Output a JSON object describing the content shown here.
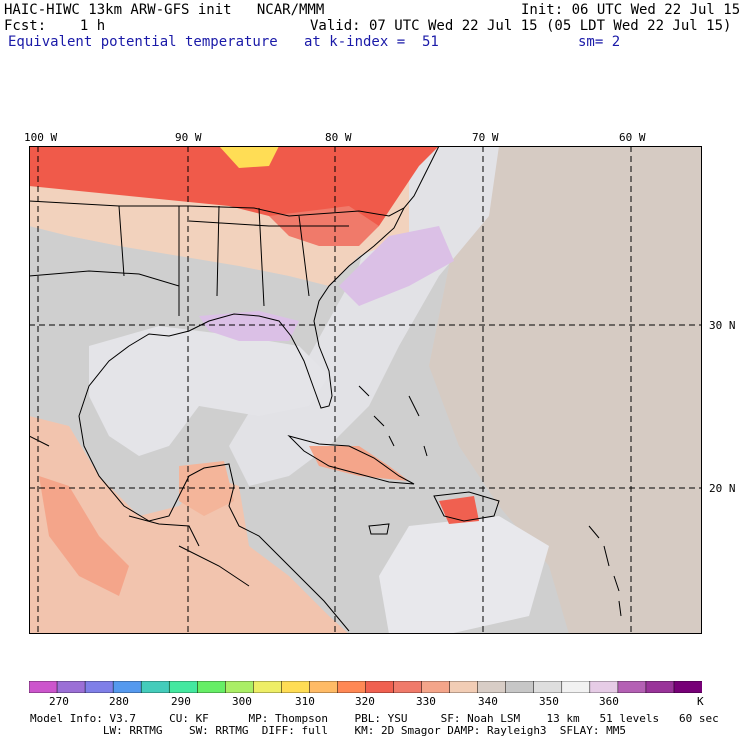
{
  "header": {
    "model_line": "HAIC-HIWC 13km ARW-GFS init   NCAR/MMM",
    "init": "Init: 06 UTC Wed 22 Jul 15",
    "fcst": "Fcst:    1 h",
    "valid": "Valid: 07 UTC Wed 22 Jul 15 (05 LDT Wed 22 Jul 15)",
    "field": "Equivalent potential temperature",
    "level": "at k-index =  51",
    "smooth": "sm= 2"
  },
  "map": {
    "lon_labels": [
      "100 W",
      "90 W",
      "80 W",
      "70 W",
      "60 W"
    ],
    "lat_labels": [
      "30 N",
      "20 N"
    ],
    "colors": {
      "land_warm": "#f2d2bd",
      "background_gray": "#cfcfcf",
      "ocean_light": "#e9e9ee",
      "tan": "#d6cbc3",
      "hot_red": "#f05a4a",
      "lavender": "#dbc0e6"
    }
  },
  "colorbar": {
    "colors": [
      "#cc55cc",
      "#9b6fd6",
      "#7f7fe8",
      "#5599ee",
      "#44ccbb",
      "#44e8a0",
      "#66ee66",
      "#aaee66",
      "#eeee66",
      "#ffdd55",
      "#ffbb66",
      "#ff8855",
      "#f06050",
      "#f07a6a",
      "#f4a58a",
      "#f2cdb5",
      "#d8cdc6",
      "#c7c7c7",
      "#dedede",
      "#f2f2f2",
      "#e6cce6",
      "#b460b4",
      "#993399",
      "#770077"
    ],
    "labels": [
      "270",
      "280",
      "290",
      "300",
      "310",
      "320",
      "330",
      "340",
      "350",
      "360",
      "K"
    ]
  },
  "footer": {
    "line1": "Model Info: V3.7     CU: KF      MP: Thompson    PBL: YSU     SF: Noah LSM    13 km   51 levels   60 sec",
    "line2": "           LW: RRTMG    SW: RRTMG  DIFF: full    KM: 2D Smagor DAMP: Rayleigh3  SFLAY: MM5"
  }
}
